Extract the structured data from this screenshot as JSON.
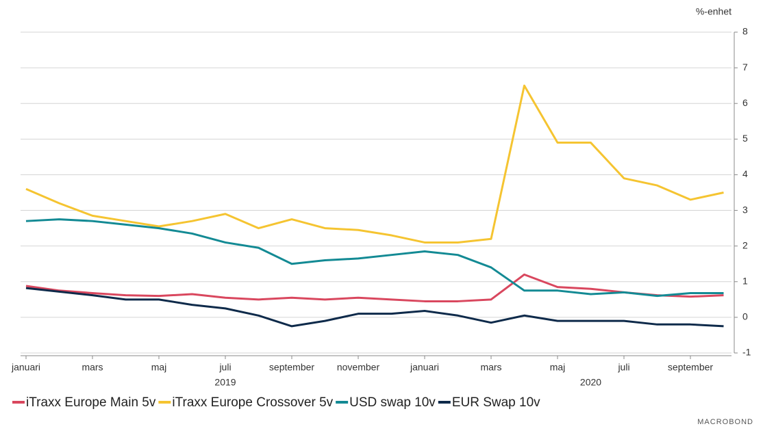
{
  "chart_data": {
    "type": "line",
    "unit_label": "%-enhet",
    "source": "MACROBOND",
    "x": [
      "2019-01",
      "2019-02",
      "2019-03",
      "2019-04",
      "2019-05",
      "2019-06",
      "2019-07",
      "2019-08",
      "2019-09",
      "2019-10",
      "2019-11",
      "2019-12",
      "2020-01",
      "2020-02",
      "2020-03",
      "2020-04",
      "2020-05",
      "2020-06",
      "2020-07",
      "2020-08",
      "2020-09",
      "2020-10"
    ],
    "xticks": [
      {
        "value": "2019-01",
        "label": "januari"
      },
      {
        "value": "2019-03",
        "label": "mars"
      },
      {
        "value": "2019-05",
        "label": "maj"
      },
      {
        "value": "2019-07",
        "label": "juli"
      },
      {
        "value": "2019-09",
        "label": "september"
      },
      {
        "value": "2019-11",
        "label": "november"
      },
      {
        "value": "2020-01",
        "label": "januari"
      },
      {
        "value": "2020-03",
        "label": "mars"
      },
      {
        "value": "2020-05",
        "label": "maj"
      },
      {
        "value": "2020-07",
        "label": "juli"
      },
      {
        "value": "2020-09",
        "label": "september"
      }
    ],
    "year_labels": [
      {
        "value": "2019-07",
        "label": "2019"
      },
      {
        "value": "2020-06",
        "label": "2020"
      }
    ],
    "ylim": [
      -1,
      8
    ],
    "yticks": [
      -1,
      0,
      1,
      2,
      3,
      4,
      5,
      6,
      7,
      8
    ],
    "grid": true,
    "legend": "bottom",
    "series": [
      {
        "name": "iTraxx Europe Main 5v",
        "color": "#d9475e",
        "values": [
          0.88,
          0.75,
          0.68,
          0.62,
          0.6,
          0.65,
          0.55,
          0.5,
          0.55,
          0.5,
          0.55,
          0.5,
          0.45,
          0.45,
          0.5,
          1.2,
          0.85,
          0.8,
          0.7,
          0.62,
          0.58,
          0.62
        ]
      },
      {
        "name": "iTraxx Europe Crossover 5v",
        "color": "#f5c431",
        "values": [
          3.6,
          3.2,
          2.85,
          2.7,
          2.55,
          2.7,
          2.9,
          2.5,
          2.75,
          2.5,
          2.45,
          2.3,
          2.1,
          2.1,
          2.2,
          6.5,
          4.9,
          4.9,
          3.9,
          3.7,
          3.3,
          3.5
        ]
      },
      {
        "name": "USD swap 10v",
        "color": "#138a94",
        "values": [
          2.7,
          2.75,
          2.7,
          2.6,
          2.5,
          2.35,
          2.1,
          1.95,
          1.5,
          1.6,
          1.65,
          1.75,
          1.85,
          1.75,
          1.4,
          0.75,
          0.75,
          0.65,
          0.7,
          0.6,
          0.68,
          0.68
        ]
      },
      {
        "name": "EUR Swap 10v",
        "color": "#0e2a4a",
        "values": [
          0.82,
          0.72,
          0.62,
          0.5,
          0.5,
          0.35,
          0.25,
          0.05,
          -0.25,
          -0.1,
          0.1,
          0.1,
          0.18,
          0.05,
          -0.15,
          0.05,
          -0.1,
          -0.1,
          -0.1,
          -0.2,
          -0.2,
          -0.25
        ]
      }
    ]
  }
}
